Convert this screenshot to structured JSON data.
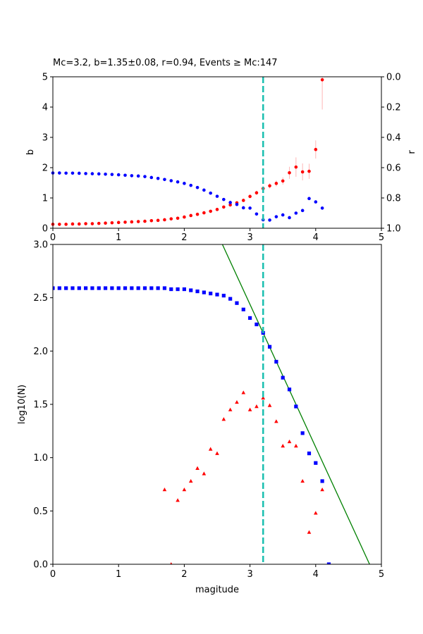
{
  "colors": {
    "b_series": "#ff0000",
    "b_error": "#ffb6b6",
    "r_series": "#0000ff",
    "mc_line": "#1bbfb0",
    "fit_line": "#008000",
    "cumulative": "#0000ff",
    "noncumulative": "#ff0000"
  },
  "chart_data": [
    {
      "type": "scatter",
      "title": "Mc=3.2, b=1.35±0.08, r=0.94, Events ≥ Mc:147",
      "xlabel": "",
      "ylabel": "b",
      "ylabel_right": "r",
      "xlim": [
        0,
        5
      ],
      "ylim": [
        0,
        5
      ],
      "ylim_right": [
        1.0,
        0.0
      ],
      "x_ticks": [
        "0",
        "1",
        "2",
        "3",
        "4",
        "5"
      ],
      "y_ticks": [
        "0",
        "1",
        "2",
        "3",
        "4",
        "5"
      ],
      "y_ticks_right": [
        "0.0",
        "0.2",
        "0.4",
        "0.6",
        "0.8",
        "1.0"
      ],
      "grid": false,
      "mc_line_x": 3.2,
      "series": [
        {
          "axis": "left",
          "marker": "circle",
          "x": [
            0.0,
            0.1,
            0.2,
            0.3,
            0.4,
            0.5,
            0.6,
            0.7,
            0.8,
            0.9,
            1.0,
            1.1,
            1.2,
            1.3,
            1.4,
            1.5,
            1.6,
            1.7,
            1.8,
            1.9,
            2.0,
            2.1,
            2.2,
            2.3,
            2.4,
            2.5,
            2.6,
            2.7,
            2.8,
            2.9,
            3.0,
            3.1,
            3.2,
            3.3,
            3.4,
            3.5,
            3.6,
            3.7,
            3.8,
            3.9,
            4.0,
            4.1
          ],
          "y": [
            0.13,
            0.13,
            0.13,
            0.14,
            0.14,
            0.15,
            0.15,
            0.16,
            0.17,
            0.18,
            0.19,
            0.2,
            0.21,
            0.22,
            0.23,
            0.25,
            0.26,
            0.28,
            0.31,
            0.33,
            0.37,
            0.42,
            0.46,
            0.51,
            0.56,
            0.62,
            0.7,
            0.77,
            0.84,
            0.92,
            1.05,
            1.17,
            1.31,
            1.4,
            1.48,
            1.56,
            1.83,
            2.02,
            1.86,
            1.88,
            2.6,
            4.9
          ],
          "err": [
            0.01,
            0.01,
            0.01,
            0.01,
            0.01,
            0.01,
            0.01,
            0.01,
            0.01,
            0.01,
            0.01,
            0.01,
            0.01,
            0.01,
            0.01,
            0.01,
            0.01,
            0.01,
            0.02,
            0.02,
            0.02,
            0.02,
            0.02,
            0.02,
            0.03,
            0.03,
            0.04,
            0.04,
            0.05,
            0.05,
            0.06,
            0.07,
            0.08,
            0.09,
            0.1,
            0.12,
            0.2,
            0.32,
            0.28,
            0.25,
            0.3,
            0.98
          ]
        },
        {
          "axis": "right",
          "marker": "circle",
          "x": [
            0.0,
            0.1,
            0.2,
            0.3,
            0.4,
            0.5,
            0.6,
            0.7,
            0.8,
            0.9,
            1.0,
            1.1,
            1.2,
            1.3,
            1.4,
            1.5,
            1.6,
            1.7,
            1.8,
            1.9,
            2.0,
            2.1,
            2.2,
            2.3,
            2.4,
            2.5,
            2.6,
            2.7,
            2.8,
            2.9,
            3.0,
            3.1,
            3.2,
            3.3,
            3.4,
            3.5,
            3.6,
            3.7,
            3.8,
            3.9,
            4.0,
            4.1
          ],
          "y": [
            0.635,
            0.635,
            0.636,
            0.636,
            0.637,
            0.639,
            0.64,
            0.641,
            0.643,
            0.645,
            0.647,
            0.65,
            0.653,
            0.655,
            0.659,
            0.665,
            0.671,
            0.678,
            0.686,
            0.694,
            0.704,
            0.717,
            0.731,
            0.748,
            0.768,
            0.789,
            0.81,
            0.83,
            0.843,
            0.865,
            0.867,
            0.906,
            0.944,
            0.946,
            0.924,
            0.912,
            0.93,
            0.9,
            0.883,
            0.804,
            0.826,
            0.867
          ]
        }
      ]
    },
    {
      "type": "scatter",
      "title": "",
      "xlabel": "magitude",
      "ylabel": "log10(N)",
      "xlim": [
        0,
        5
      ],
      "ylim": [
        0,
        3.0
      ],
      "x_ticks": [
        "0",
        "1",
        "2",
        "3",
        "4",
        "5"
      ],
      "y_ticks": [
        "0.0",
        "0.5",
        "1.0",
        "1.5",
        "2.0",
        "2.5",
        "3.0"
      ],
      "grid": false,
      "mc_line_x": 3.2,
      "fit_line": {
        "x": [
          2.58,
          4.82
        ],
        "y": [
          3.0,
          0.0
        ]
      },
      "series": [
        {
          "marker": "square",
          "x": [
            0.0,
            0.1,
            0.2,
            0.3,
            0.4,
            0.5,
            0.6,
            0.7,
            0.8,
            0.9,
            1.0,
            1.1,
            1.2,
            1.3,
            1.4,
            1.5,
            1.6,
            1.7,
            1.8,
            1.9,
            2.0,
            2.1,
            2.2,
            2.3,
            2.4,
            2.5,
            2.6,
            2.7,
            2.8,
            2.9,
            3.0,
            3.1,
            3.2,
            3.3,
            3.4,
            3.5,
            3.6,
            3.7,
            3.8,
            3.9,
            4.0,
            4.1,
            4.2
          ],
          "y": [
            2.59,
            2.59,
            2.59,
            2.59,
            2.59,
            2.59,
            2.59,
            2.59,
            2.59,
            2.59,
            2.59,
            2.59,
            2.59,
            2.59,
            2.59,
            2.59,
            2.59,
            2.59,
            2.58,
            2.58,
            2.58,
            2.57,
            2.56,
            2.55,
            2.54,
            2.53,
            2.52,
            2.49,
            2.45,
            2.39,
            2.31,
            2.25,
            2.17,
            2.04,
            1.9,
            1.75,
            1.64,
            1.48,
            1.23,
            1.04,
            0.95,
            0.78,
            0.0
          ]
        },
        {
          "marker": "triangle",
          "x": [
            1.7,
            1.8,
            1.9,
            2.0,
            2.1,
            2.2,
            2.3,
            2.4,
            2.5,
            2.6,
            2.7,
            2.8,
            2.9,
            3.0,
            3.1,
            3.2,
            3.3,
            3.4,
            3.5,
            3.6,
            3.7,
            3.8,
            3.9,
            4.0,
            4.1
          ],
          "y": [
            0.7,
            0.0,
            0.6,
            0.7,
            0.78,
            0.9,
            0.85,
            1.08,
            1.04,
            1.36,
            1.45,
            1.52,
            1.61,
            1.45,
            1.48,
            1.56,
            1.49,
            1.34,
            1.11,
            1.15,
            1.11,
            0.78,
            0.3,
            0.48,
            0.7
          ]
        }
      ]
    }
  ]
}
